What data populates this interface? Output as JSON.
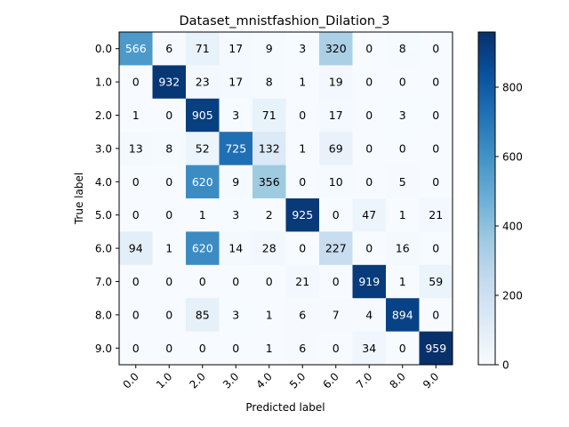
{
  "chart_data": {
    "type": "heatmap",
    "title": "Dataset_mnistfashion_Dilation_3",
    "xlabel": "Predicted label",
    "ylabel": "True label",
    "x_categories": [
      "0.0",
      "1.0",
      "2.0",
      "3.0",
      "4.0",
      "5.0",
      "6.0",
      "7.0",
      "8.0",
      "9.0"
    ],
    "y_categories": [
      "0.0",
      "1.0",
      "2.0",
      "3.0",
      "4.0",
      "5.0",
      "6.0",
      "7.0",
      "8.0",
      "9.0"
    ],
    "values": [
      [
        566,
        6,
        71,
        17,
        9,
        3,
        320,
        0,
        8,
        0
      ],
      [
        0,
        932,
        23,
        17,
        8,
        1,
        19,
        0,
        0,
        0
      ],
      [
        1,
        0,
        905,
        3,
        71,
        0,
        17,
        0,
        3,
        0
      ],
      [
        13,
        8,
        52,
        725,
        132,
        1,
        69,
        0,
        0,
        0
      ],
      [
        0,
        0,
        620,
        9,
        356,
        0,
        10,
        0,
        5,
        0
      ],
      [
        0,
        0,
        1,
        3,
        2,
        925,
        0,
        47,
        1,
        21
      ],
      [
        94,
        1,
        620,
        14,
        28,
        0,
        227,
        0,
        16,
        0
      ],
      [
        0,
        0,
        0,
        0,
        0,
        21,
        0,
        919,
        1,
        59
      ],
      [
        0,
        0,
        85,
        3,
        1,
        6,
        7,
        4,
        894,
        0
      ],
      [
        0,
        0,
        0,
        0,
        1,
        6,
        0,
        34,
        0,
        959
      ]
    ],
    "colormap": "Blues",
    "vmin": 0,
    "vmax": 959,
    "colorbar_ticks": [
      0,
      200,
      400,
      600,
      800
    ],
    "text_color_dark": "#000000",
    "text_color_light": "#ffffff"
  }
}
